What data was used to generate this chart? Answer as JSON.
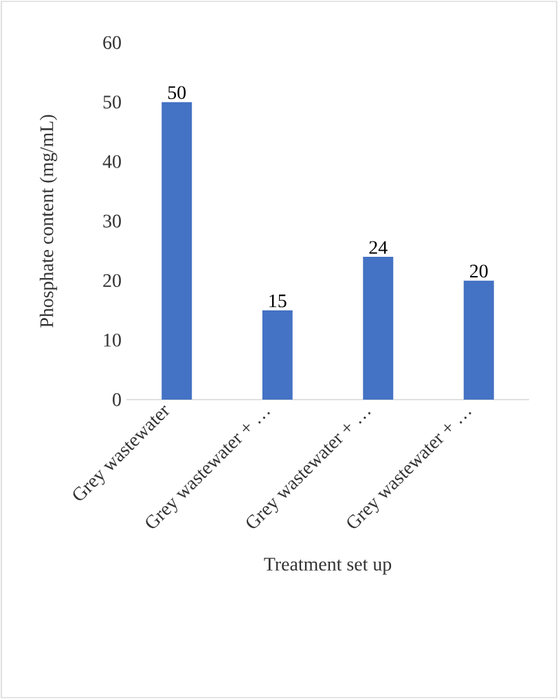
{
  "chart_data": {
    "type": "bar",
    "categories": [
      "Grey wastewater",
      "Grey wastewater + …",
      "Grey wastewater + …",
      "Grey wastewater + …"
    ],
    "values": [
      50,
      15,
      24,
      20
    ],
    "color": "#4472c4",
    "ylim": [
      0,
      60
    ],
    "yticks": [
      0,
      10,
      20,
      30,
      40,
      50,
      60
    ],
    "xlabel": "Treatment set up",
    "ylabel": "Phosphate content (mg/mL)",
    "data_labels": true
  }
}
